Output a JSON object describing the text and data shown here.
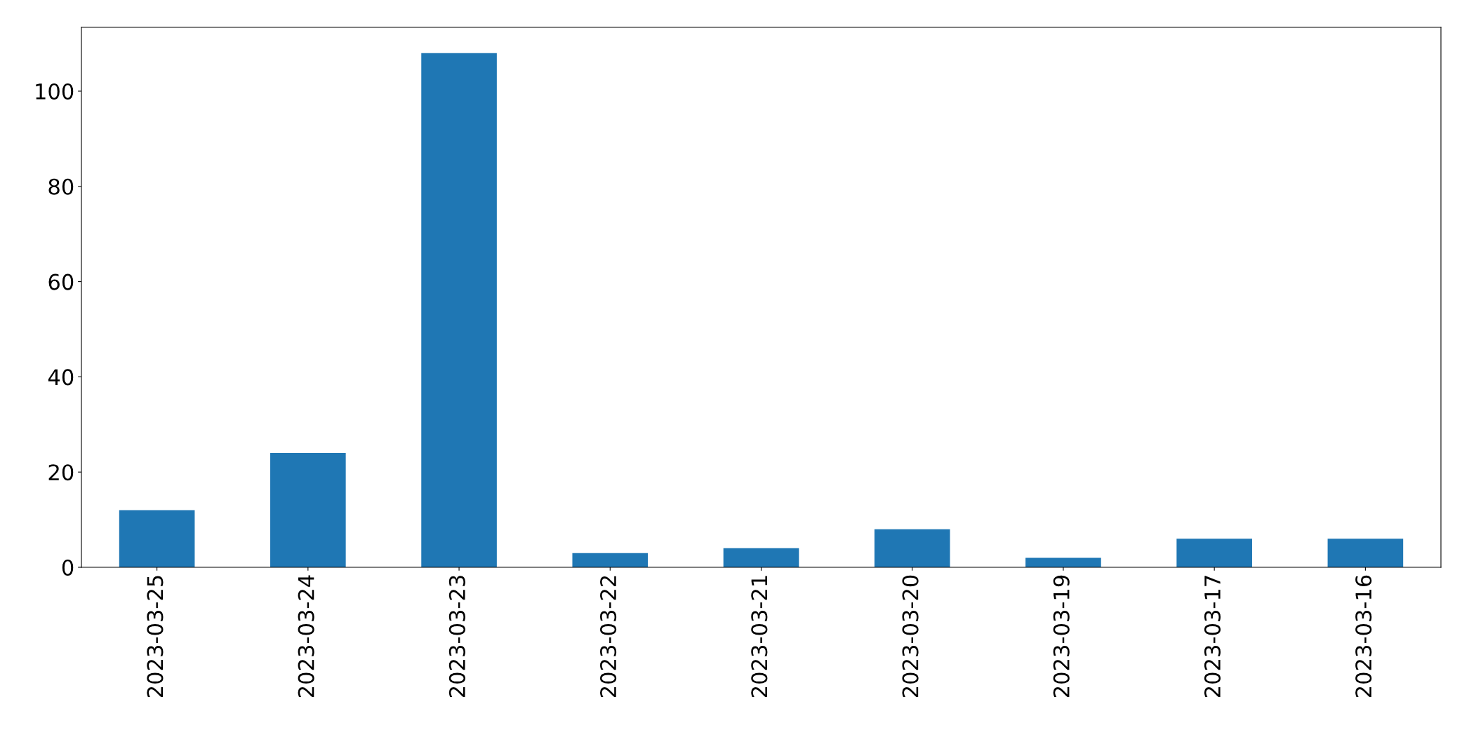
{
  "chart_data": {
    "type": "bar",
    "categories": [
      "2023-03-25",
      "2023-03-24",
      "2023-03-23",
      "2023-03-22",
      "2023-03-21",
      "2023-03-20",
      "2023-03-19",
      "2023-03-17",
      "2023-03-16"
    ],
    "values": [
      12,
      24,
      108,
      3,
      4,
      8,
      2,
      6,
      6
    ],
    "color": "#1f77b4",
    "ylim": [
      0,
      113.4
    ],
    "yticks": [
      0,
      20,
      40,
      60,
      80,
      100
    ],
    "grid": false,
    "legend": false
  }
}
